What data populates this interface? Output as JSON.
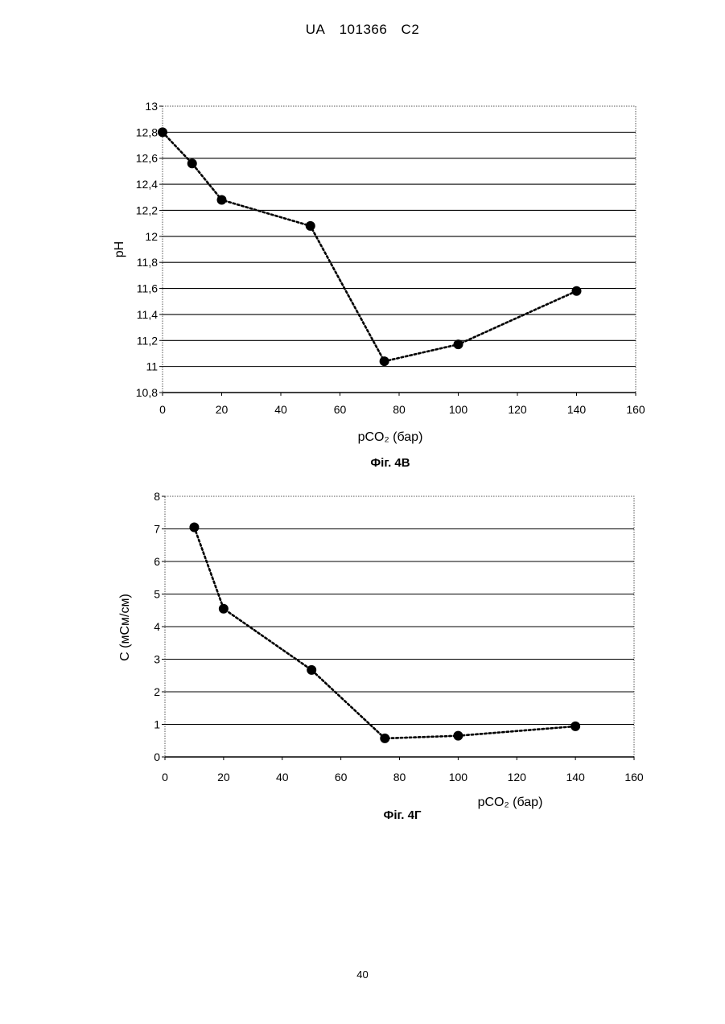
{
  "header": {
    "country": "UA",
    "number": "101366",
    "kind": "C2"
  },
  "page_number": "40",
  "chart_data": [
    {
      "type": "line",
      "caption": "Фіг. 4В",
      "xlabel": "pCO₂ (бар)",
      "ylabel": "pH",
      "xlim": [
        0,
        160
      ],
      "ylim": [
        10.8,
        13
      ],
      "xticks": [
        0,
        20,
        40,
        60,
        80,
        100,
        120,
        140,
        160
      ],
      "yticks": [
        10.8,
        11,
        11.2,
        11.4,
        11.6,
        11.8,
        12,
        12.2,
        12.4,
        12.6,
        12.8,
        13
      ],
      "ytick_labels": [
        "10,8",
        "11",
        "11,2",
        "11,4",
        "11,6",
        "11,8",
        "12",
        "12,2",
        "12,4",
        "12,6",
        "12,8",
        "13"
      ],
      "grid": "horizontal",
      "line_style": "dotted",
      "marker": "circle",
      "series": [
        {
          "x": [
            0,
            10,
            20,
            50,
            75,
            100,
            140
          ],
          "y": [
            12.8,
            12.56,
            12.28,
            12.08,
            11.04,
            11.17,
            11.58
          ]
        }
      ]
    },
    {
      "type": "line",
      "caption": "Фіг. 4Г",
      "xlabel": "pCO₂ (бар)",
      "ylabel": "C (мСм/см)",
      "xlim": [
        0,
        160
      ],
      "ylim": [
        0,
        8
      ],
      "xticks": [
        0,
        20,
        40,
        60,
        80,
        100,
        120,
        140,
        160
      ],
      "yticks": [
        0,
        1,
        2,
        3,
        4,
        5,
        6,
        7,
        8
      ],
      "ytick_labels": [
        "0",
        "1",
        "2",
        "3",
        "4",
        "5",
        "6",
        "7",
        "8"
      ],
      "grid": "horizontal",
      "line_style": "dotted",
      "marker": "circle",
      "series": [
        {
          "x": [
            10,
            20,
            50,
            75,
            100,
            140
          ],
          "y": [
            7.05,
            4.55,
            2.67,
            0.57,
            0.65,
            0.94
          ]
        }
      ]
    }
  ]
}
